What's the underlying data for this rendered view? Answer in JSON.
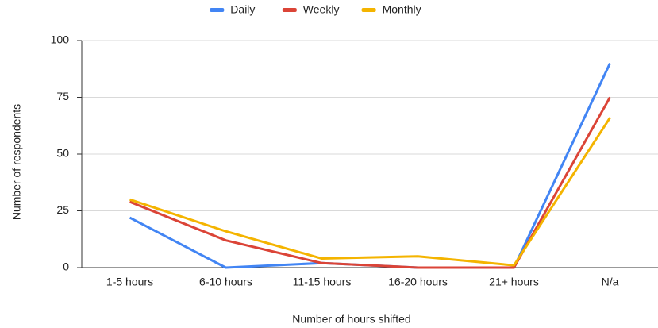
{
  "chart_data": {
    "type": "line",
    "x_label": "Number of hours shifted",
    "y_label": "Number of respondents",
    "categories": [
      "1-5 hours",
      "6-10 hours",
      "11-15 hours",
      "16-20 hours",
      "21+ hours",
      "N/a"
    ],
    "series": [
      {
        "name": "Daily",
        "color": "#4285f4",
        "values": [
          22,
          0,
          2,
          0,
          0,
          90
        ]
      },
      {
        "name": "Weekly",
        "color": "#db4437",
        "values": [
          29,
          12,
          2,
          0,
          0,
          75
        ]
      },
      {
        "name": "Monthly",
        "color": "#f4b400",
        "values": [
          30,
          16,
          4,
          5,
          1,
          66
        ]
      }
    ],
    "ylim": [
      0,
      100
    ],
    "yticks": [
      0,
      25,
      50,
      75,
      100
    ],
    "grid": true,
    "legend": "top"
  }
}
